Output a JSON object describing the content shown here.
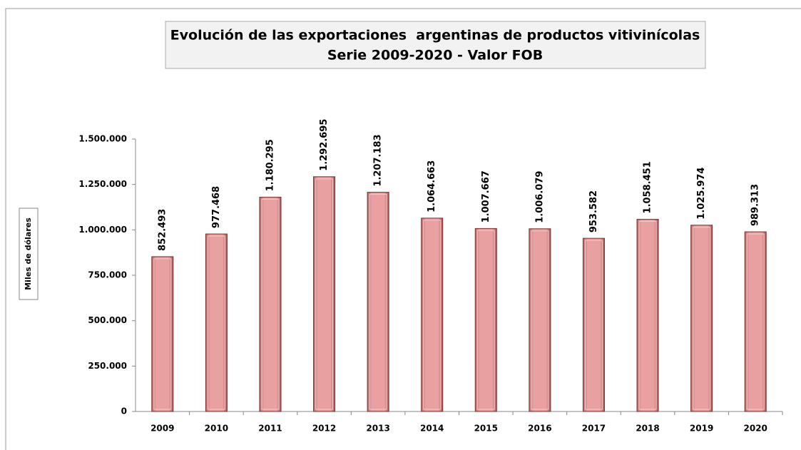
{
  "chart_data": {
    "type": "bar",
    "title": "Evolución de las exportaciones  argentinas de productos vitivinícolas",
    "subtitle": "Serie 2009-2020 - Valor FOB",
    "y_axis_label": "Miles de dólares",
    "categories": [
      "2009",
      "2010",
      "2011",
      "2012",
      "2013",
      "2014",
      "2015",
      "2016",
      "2017",
      "2018",
      "2019",
      "2020"
    ],
    "values": [
      852493,
      977468,
      1180295,
      1292695,
      1207183,
      1064663,
      1007667,
      1006079,
      953582,
      1058451,
      1025974,
      989313
    ],
    "value_labels": [
      "852.493",
      "977.468",
      "1.180.295",
      "1.292.695",
      "1.207.183",
      "1.064.663",
      "1.007.667",
      "1.006.079",
      "953.582",
      "1.058.451",
      "1.025.974",
      "989.313"
    ],
    "color": "#e8a0a0",
    "ylim": [
      0,
      1500000
    ],
    "yticks": [
      0,
      {
        "value": 250000,
        "label": "250.000"
      },
      {
        "value": 500000,
        "label": "500.000"
      },
      {
        "value": 750000,
        "label": "750.000"
      },
      {
        "value": 1000000,
        "label": "1.000.000"
      },
      {
        "value": 1250000,
        "label": "1.250.000"
      },
      {
        "value": 1500000,
        "label": "1.500.000"
      }
    ],
    "grid": false
  }
}
